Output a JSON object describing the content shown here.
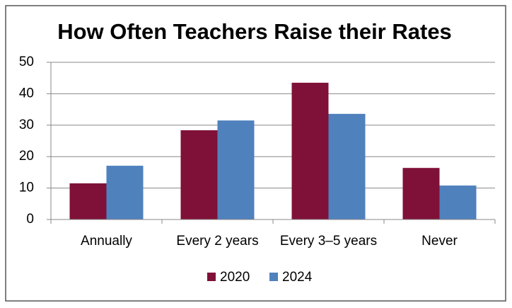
{
  "chart_data": {
    "type": "bar",
    "title": "How Often Teachers Raise their Rates",
    "categories": [
      "Annually",
      "Every 2 years",
      "Every 3–5 years",
      "Never"
    ],
    "series": [
      {
        "name": "2020",
        "color": "#7f1138",
        "values": [
          11.5,
          28.4,
          43.5,
          16.4
        ]
      },
      {
        "name": "2024",
        "color": "#4f81bd",
        "values": [
          17.1,
          31.5,
          33.6,
          10.8
        ]
      }
    ],
    "ylim": [
      0,
      50
    ],
    "yticks": [
      0,
      10,
      20,
      30,
      40,
      50
    ],
    "grid": true,
    "legend": "bottom"
  }
}
